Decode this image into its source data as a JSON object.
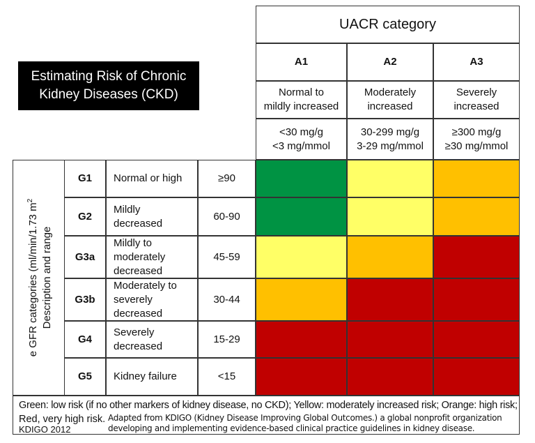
{
  "title_lines": [
    "Estimating Risk of Chronic",
    "Kidney Diseases (CKD)"
  ],
  "uacr_header": "UACR category",
  "columns": [
    {
      "code": "A1",
      "desc": [
        "Normal to",
        "mildly increased"
      ],
      "range": [
        "<30 mg/g",
        "<3 mg/mmol"
      ]
    },
    {
      "code": "A2",
      "desc": [
        "Moderately",
        "increased"
      ],
      "range": [
        "30-299 mg/g",
        "3-29 mg/mmol"
      ]
    },
    {
      "code": "A3",
      "desc": [
        "Severely",
        "increased"
      ],
      "range": [
        "≥300 mg/g",
        "≥30 mg/mmol"
      ]
    }
  ],
  "side_label": {
    "line1": "e GFR categories (ml/min/1.73 m",
    "sup": "2",
    "line2": "Description and range"
  },
  "rows": [
    {
      "code": "G1",
      "desc": "Normal or high",
      "range": "≥90"
    },
    {
      "code": "G2",
      "desc": "Mildly decreased",
      "range": "60-90"
    },
    {
      "code": "G3a",
      "desc": "Mildly to moderately decreased",
      "range": "45-59"
    },
    {
      "code": "G3b",
      "desc": "Moderately to severely decreased",
      "range": "30-44"
    },
    {
      "code": "G4",
      "desc": "Severely decreased",
      "range": "15-29"
    },
    {
      "code": "G5",
      "desc": "Kidney failure",
      "range": "<15"
    }
  ],
  "chart_data": {
    "type": "heatmap",
    "rows": [
      "G1",
      "G2",
      "G3a",
      "G3b",
      "G4",
      "G5"
    ],
    "columns": [
      "A1",
      "A2",
      "A3"
    ],
    "risk": [
      [
        "low",
        "moderate",
        "high"
      ],
      [
        "low",
        "moderate",
        "high"
      ],
      [
        "moderate",
        "high",
        "very high"
      ],
      [
        "high",
        "very high",
        "very high"
      ],
      [
        "very high",
        "very high",
        "very high"
      ],
      [
        "very high",
        "very high",
        "very high"
      ]
    ],
    "colors": {
      "low": "#009343",
      "moderate": "#ffff66",
      "high": "#ffc000",
      "very high": "#c00000"
    }
  },
  "footer": {
    "legend_line1": "Green: low risk (if no other markers of kidney disease, no CKD); Yellow: moderately increased risk; Orange: high risk;",
    "legend_line2": "Red, very high risk.",
    "source": "KDIGO 2012",
    "note_line1": "Adapted from KDIGO (Kidney Disease Improving Global Outcomes.) a global nonprofit organization",
    "note_line2": "developing and implementing evidence-based clinical practice guidelines in kidney disease."
  }
}
